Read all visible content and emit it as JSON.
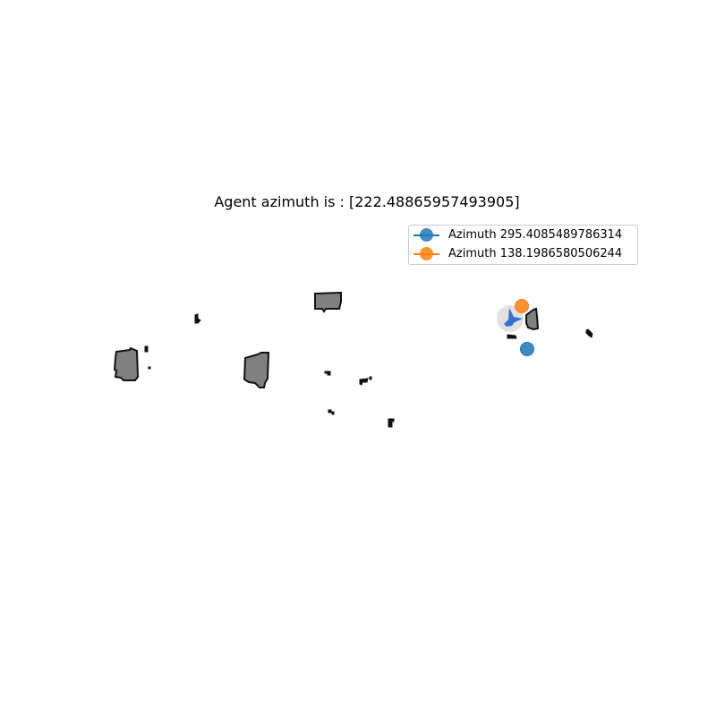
{
  "title": "Agent azimuth is : [222.48865957493905]",
  "legend": [
    {
      "label": "Azimuth 295.4085489786314",
      "color": "#1f77b4"
    },
    {
      "label": "Azimuth 138.1986580506244",
      "color": "#ff7f0e"
    }
  ],
  "map": {
    "obstacle_fill": "#808080",
    "obstacle_stroke": "#111111",
    "agent_color": "#3a6fcf",
    "agent_halo_color": "#e2e2e2"
  }
}
